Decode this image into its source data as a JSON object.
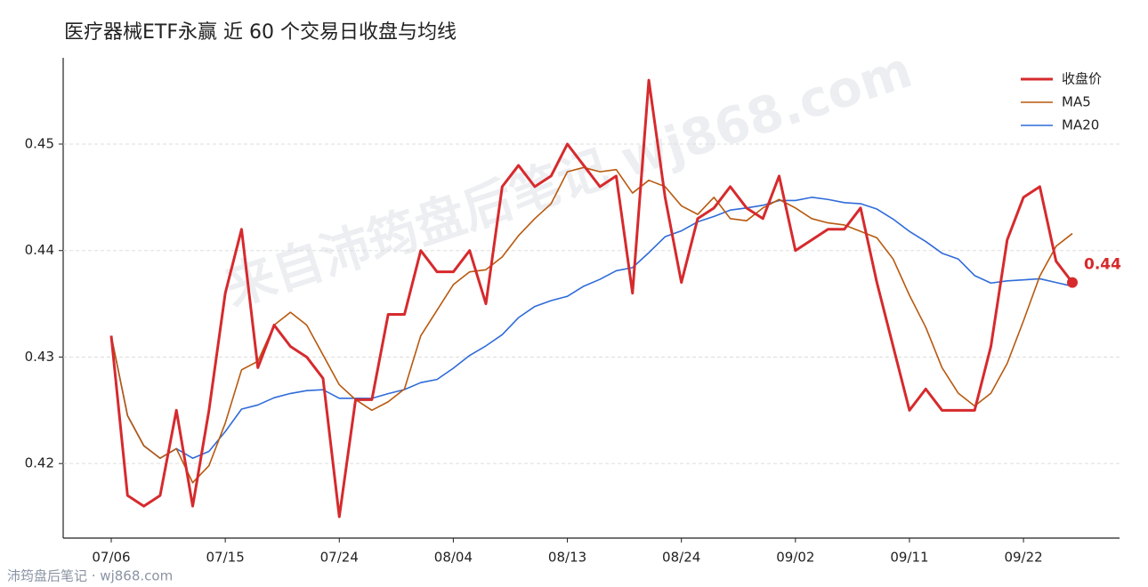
{
  "chart_data": {
    "type": "line",
    "title": "医疗器械ETF永赢 近 60 个交易日收盘与均线",
    "watermark": "来自沛筠盘后笔记 wj868.com",
    "footer": "沛筠盘后笔记 · wj868.com",
    "categories": [
      "07/06",
      null,
      null,
      null,
      null,
      null,
      null,
      "07/15",
      null,
      null,
      null,
      null,
      null,
      null,
      "07/24",
      null,
      null,
      null,
      null,
      null,
      null,
      "08/04",
      null,
      null,
      null,
      null,
      null,
      null,
      "08/13",
      null,
      null,
      null,
      null,
      null,
      null,
      "08/24",
      null,
      null,
      null,
      null,
      null,
      null,
      "09/02",
      null,
      null,
      null,
      null,
      null,
      null,
      "09/11",
      null,
      null,
      null,
      null,
      null,
      null,
      "09/22",
      null,
      null,
      null
    ],
    "series": [
      {
        "name": "收盘价",
        "color": "#d62a2d",
        "width": 3,
        "values": [
          0.432,
          0.417,
          0.416,
          0.417,
          0.425,
          0.416,
          0.425,
          0.436,
          0.442,
          0.429,
          0.433,
          0.431,
          0.43,
          0.428,
          0.415,
          0.426,
          0.426,
          0.434,
          0.434,
          0.44,
          0.438,
          0.438,
          0.44,
          0.435,
          0.446,
          0.448,
          0.446,
          0.447,
          0.45,
          0.448,
          0.446,
          0.447,
          0.436,
          0.456,
          0.445,
          0.437,
          0.443,
          0.444,
          0.446,
          0.444,
          0.443,
          0.447,
          0.44,
          0.441,
          0.442,
          0.442,
          0.444,
          0.437,
          0.431,
          0.425,
          0.427,
          0.425,
          0.425,
          0.425,
          0.431,
          0.441,
          0.445,
          0.446,
          0.439,
          0.437
        ],
        "value_labels": [
          null,
          null,
          null,
          null,
          null,
          null,
          null,
          null,
          null,
          null,
          null,
          null,
          null,
          null,
          null,
          null,
          null,
          null,
          null,
          null,
          null,
          null,
          null,
          null,
          null,
          null,
          null,
          null,
          null,
          null,
          null,
          null,
          null,
          null,
          null,
          null,
          null,
          null,
          null,
          null,
          null,
          null,
          null,
          null,
          null,
          null,
          null,
          null,
          null,
          null,
          null,
          null,
          null,
          null,
          null,
          null,
          null,
          null,
          null,
          "0.44"
        ]
      },
      {
        "name": "MA5",
        "color": "#b8590f",
        "width": 1.6,
        "values": [
          0.432,
          0.4245,
          0.42167,
          0.4205,
          0.4214,
          0.4182,
          0.4198,
          0.4238,
          0.4288,
          0.4296,
          0.433,
          0.4342,
          0.433,
          0.4302,
          0.4274,
          0.426,
          0.425,
          0.4258,
          0.427,
          0.432,
          0.4344,
          0.4368,
          0.438,
          0.4382,
          0.4394,
          0.4414,
          0.443,
          0.4444,
          0.4474,
          0.4478,
          0.4474,
          0.4476,
          0.4454,
          0.4466,
          0.446,
          0.4442,
          0.4434,
          0.445,
          0.443,
          0.4428,
          0.444,
          0.4448,
          0.444,
          0.443,
          0.4426,
          0.4424,
          0.4418,
          0.4412,
          0.4392,
          0.4358,
          0.4328,
          0.429,
          0.4266,
          0.4254,
          0.4266,
          0.4294,
          0.4334,
          0.4376,
          0.4404,
          0.4416
        ]
      },
      {
        "name": "MA20",
        "color": "#2f6bd9",
        "width": 1.6,
        "values": [
          0.432,
          0.4245,
          0.42167,
          0.4205,
          0.4214,
          0.4205,
          0.42114,
          0.423,
          0.42511,
          0.4255,
          0.42618,
          0.42658,
          0.42685,
          0.42693,
          0.42613,
          0.42613,
          0.42612,
          0.42656,
          0.42695,
          0.4276,
          0.4279,
          0.42895,
          0.43015,
          0.43105,
          0.4321,
          0.4337,
          0.43475,
          0.4353,
          0.4357,
          0.43665,
          0.4373,
          0.4381,
          0.4384,
          0.4398,
          0.4413,
          0.44185,
          0.4427,
          0.4432,
          0.4438,
          0.444,
          0.44425,
          0.4447,
          0.4447,
          0.445,
          0.4448,
          0.4445,
          0.4444,
          0.4439,
          0.44295,
          0.4418,
          0.44085,
          0.43975,
          0.4392,
          0.43765,
          0.43695,
          0.43715,
          0.43725,
          0.43735,
          0.437,
          0.43665
        ]
      }
    ],
    "ylim": [
      0.413,
      0.4581
    ],
    "yticks": [
      0.42,
      0.43,
      0.44,
      0.45
    ],
    "grid": true,
    "legend": "upper right"
  }
}
